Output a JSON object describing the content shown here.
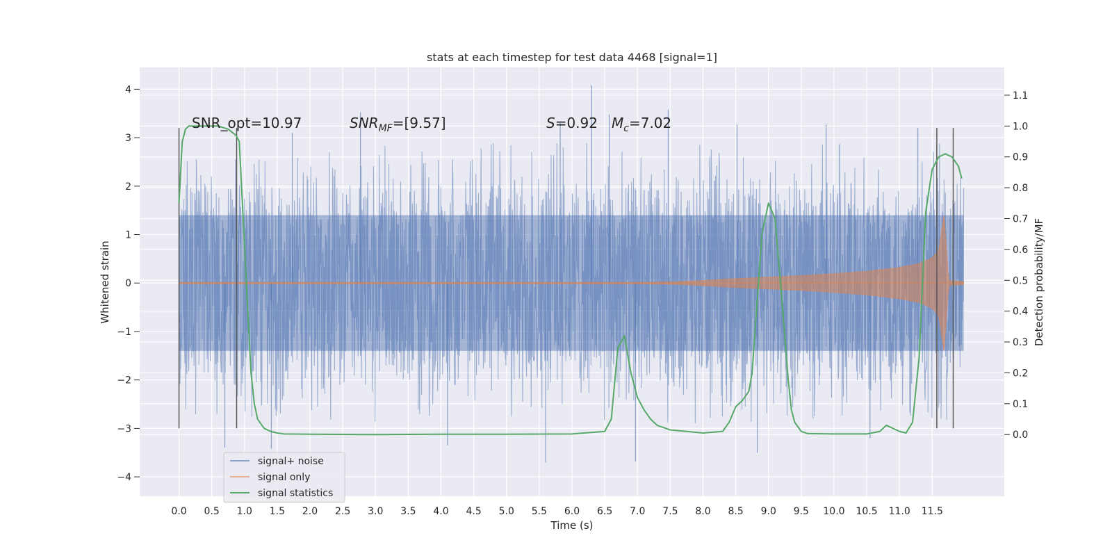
{
  "chart_data": {
    "type": "line",
    "title": "stats at each timestep for test data 4468 [signal=1]",
    "xlabel": "Time (s)",
    "ylabel": "Whitened strain",
    "ylabel_right": "Detection probability/MF",
    "xlim": [
      -0.6,
      12.6
    ],
    "ylim": [
      -4.4,
      4.45
    ],
    "ylim_right": [
      -0.2,
      1.19
    ],
    "x_ticks": [
      0.0,
      0.5,
      1.0,
      1.5,
      2.0,
      2.5,
      3.0,
      3.5,
      4.0,
      4.5,
      5.0,
      5.5,
      6.0,
      6.5,
      7.0,
      7.5,
      8.0,
      8.5,
      9.0,
      9.5,
      10.0,
      10.5,
      11.0,
      11.5
    ],
    "x_tick_labels": [
      "0.0",
      "0.5",
      "1.0",
      "1.5",
      "2.0",
      "2.5",
      "3.0",
      "3.5",
      "4.0",
      "4.5",
      "5.0",
      "5.5",
      "6.0",
      "6.5",
      "7.0",
      "7.5",
      "8.0",
      "8.5",
      "9.0",
      "9.5",
      "10.0",
      "10.5",
      "11.0",
      "11.5"
    ],
    "y_ticks": [
      -4,
      -3,
      -2,
      -1,
      0,
      1,
      2,
      3,
      4
    ],
    "y_tick_labels": [
      "−4",
      "−3",
      "−2",
      "−1",
      "0",
      "1",
      "2",
      "3",
      "4"
    ],
    "y_ticks_right": [
      0.0,
      0.1,
      0.2,
      0.3,
      0.4,
      0.5,
      0.6,
      0.7,
      0.8,
      0.9,
      1.0,
      1.1
    ],
    "y_tick_labels_right": [
      "0.0",
      "0.1",
      "0.2",
      "0.3",
      "0.4",
      "0.5",
      "0.6",
      "0.7",
      "0.8",
      "0.9",
      "1.0",
      "1.1"
    ],
    "grid": true,
    "legend_position": "bottom-left",
    "annotations": {
      "snr_opt": "SNR_opt=10.97",
      "snr_mf_base": "SNR",
      "snr_mf_sub": "MF",
      "snr_mf_value": "=[9.57]",
      "s_symbol": "S",
      "s_value": "=0.92",
      "mc_base": "M",
      "mc_sub": "c",
      "mc_value": "=7.02"
    },
    "series": [
      {
        "name": "signal+ noise",
        "color": "#4c72b0",
        "axis": "left",
        "x_range": [
          0.0,
          11.98
        ],
        "envelope_typical": 2.1,
        "envelope_peak": 4.1,
        "tall_spikes": [
          {
            "x": 6.3,
            "y": 4.08
          },
          {
            "x": 7.47,
            "y": 3.58
          },
          {
            "x": 2.77,
            "y": 3.52
          },
          {
            "x": 6.57,
            "y": 3.48
          },
          {
            "x": 1.41,
            "y": -3.42
          },
          {
            "x": 0.7,
            "y": -3.4
          },
          {
            "x": 5.6,
            "y": -3.7
          },
          {
            "x": 6.97,
            "y": -3.68
          },
          {
            "x": 4.1,
            "y": -3.35
          },
          {
            "x": 8.83,
            "y": -3.5
          },
          {
            "x": 10.55,
            "y": -3.2
          },
          {
            "x": 9.88,
            "y": 3.27
          },
          {
            "x": 8.52,
            "y": 3.27
          },
          {
            "x": 11.28,
            "y": 3.2
          },
          {
            "x": 1.73,
            "y": 3.1
          },
          {
            "x": 5.82,
            "y": 3.3
          }
        ]
      },
      {
        "name": "signal only",
        "color": "#dd8452",
        "axis": "left",
        "x": [
          0.0,
          7.0,
          7.5,
          8.0,
          8.5,
          9.0,
          9.5,
          10.0,
          10.5,
          11.0,
          11.3,
          11.5,
          11.6,
          11.68,
          11.75,
          11.98
        ],
        "amplitude": [
          0.01,
          0.01,
          0.02,
          0.05,
          0.09,
          0.12,
          0.15,
          0.19,
          0.24,
          0.32,
          0.4,
          0.52,
          0.68,
          1.4,
          0.05,
          0.03
        ]
      },
      {
        "name": "signal statistics",
        "color": "#55a868",
        "axis": "right",
        "x": [
          0.0,
          0.05,
          0.1,
          0.15,
          0.25,
          0.4,
          0.6,
          0.75,
          0.87,
          0.92,
          0.98,
          1.05,
          1.1,
          1.15,
          1.2,
          1.3,
          1.4,
          1.5,
          1.6,
          2.0,
          3.0,
          4.0,
          5.0,
          6.0,
          6.5,
          6.6,
          6.7,
          6.8,
          6.9,
          7.0,
          7.1,
          7.2,
          7.3,
          7.5,
          8.0,
          8.3,
          8.4,
          8.5,
          8.6,
          8.7,
          8.75,
          8.8,
          8.9,
          9.0,
          9.1,
          9.2,
          9.3,
          9.35,
          9.4,
          9.5,
          9.6,
          10.0,
          10.5,
          10.7,
          10.8,
          10.9,
          11.0,
          11.1,
          11.2,
          11.3,
          11.4,
          11.5,
          11.6,
          11.7,
          11.8,
          11.9,
          11.95
        ],
        "values": [
          0.75,
          0.95,
          0.99,
          1.0,
          1.0,
          1.0,
          1.0,
          0.99,
          0.97,
          0.95,
          0.7,
          0.4,
          0.2,
          0.1,
          0.05,
          0.02,
          0.01,
          0.005,
          0.002,
          0.001,
          0.0,
          0.001,
          0.001,
          0.002,
          0.01,
          0.05,
          0.28,
          0.32,
          0.2,
          0.12,
          0.08,
          0.05,
          0.03,
          0.015,
          0.005,
          0.01,
          0.04,
          0.09,
          0.11,
          0.14,
          0.2,
          0.35,
          0.65,
          0.75,
          0.7,
          0.45,
          0.18,
          0.08,
          0.04,
          0.01,
          0.003,
          0.002,
          0.002,
          0.01,
          0.03,
          0.02,
          0.01,
          0.005,
          0.04,
          0.25,
          0.72,
          0.86,
          0.9,
          0.91,
          0.9,
          0.87,
          0.83
        ]
      }
    ],
    "vertical_markers": [
      {
        "x": 0.0,
        "y_range": [
          -3.0,
          3.2
        ]
      },
      {
        "x": 0.88,
        "y_range": [
          -3.0,
          3.2
        ]
      },
      {
        "x": 11.57,
        "y_range": [
          -3.0,
          3.2
        ]
      },
      {
        "x": 11.82,
        "y_range": [
          -3.0,
          3.2
        ]
      }
    ]
  }
}
